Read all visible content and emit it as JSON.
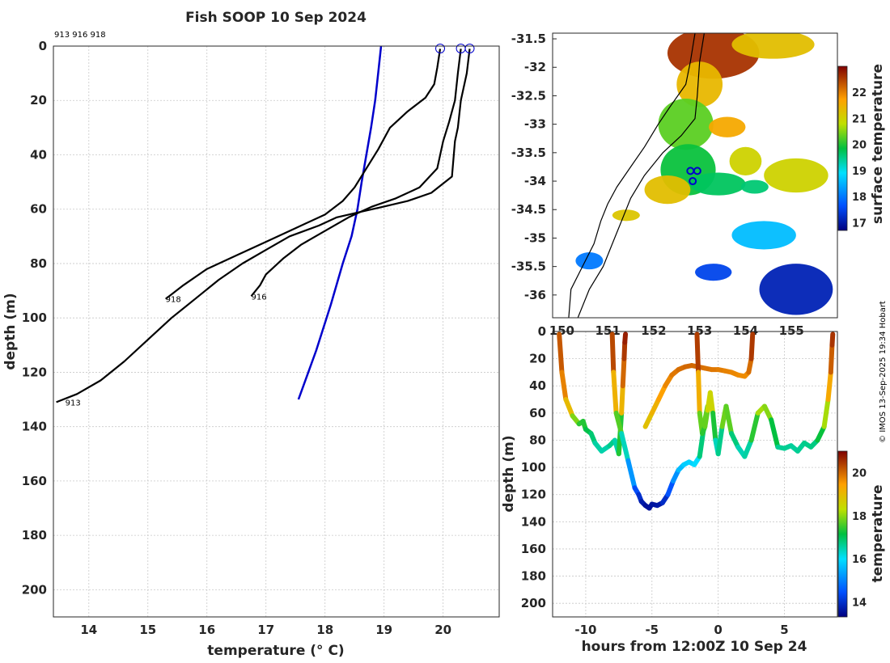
{
  "figure": {
    "title": "Fish SOOP 10 Sep 2024",
    "credit": "© IMOS 13-Sep-2025 19:34 Hobart",
    "top_ids_label": "913 916 918"
  },
  "chart_data": [
    {
      "type": "line",
      "name": "profile",
      "xlabel": "temperature (° C)",
      "ylabel": "depth (m)",
      "xlim": [
        13.4,
        20.95
      ],
      "ylim": [
        0,
        210
      ],
      "y_reversed": true,
      "grid": true,
      "xticks": [
        14,
        15,
        16,
        17,
        18,
        19,
        20
      ],
      "yticks": [
        0,
        20,
        40,
        60,
        80,
        100,
        120,
        140,
        160,
        180,
        200
      ],
      "surface_markers": [
        19.95,
        20.3,
        20.45
      ],
      "profile_labels": [
        {
          "text": "913",
          "x": 13.6,
          "y": 131
        },
        {
          "text": "916",
          "x": 16.75,
          "y": 92
        },
        {
          "text": "918",
          "x": 15.3,
          "y": 93
        }
      ],
      "series": [
        {
          "name": "climatology",
          "color": "#0000cc",
          "x": [
            18.95,
            18.9,
            18.85,
            18.78,
            18.7,
            18.62,
            18.55,
            18.45,
            18.3,
            18.1,
            17.85,
            17.55
          ],
          "y": [
            0,
            10,
            20,
            30,
            40,
            50,
            60,
            70,
            80,
            95,
            112,
            130
          ]
        },
        {
          "name": "913",
          "color": "#000000",
          "x": [
            20.45,
            20.4,
            20.3,
            20.25,
            20.2,
            20.15,
            19.8,
            19.4,
            19.0,
            18.6,
            18.2,
            17.9,
            17.4,
            17.0,
            16.6,
            16.2,
            15.8,
            15.4,
            15.0,
            14.6,
            14.2,
            13.8,
            13.45
          ],
          "y": [
            1,
            10,
            20,
            30,
            35,
            48,
            54,
            57,
            59,
            61,
            63,
            66,
            70,
            75,
            80,
            86,
            93,
            100,
            108,
            116,
            123,
            128,
            131
          ]
        },
        {
          "name": "916",
          "color": "#000000",
          "x": [
            20.3,
            20.25,
            20.2,
            20.1,
            20.0,
            19.9,
            19.6,
            19.2,
            18.8,
            18.4,
            18.0,
            17.6,
            17.3,
            17.0,
            16.9,
            16.75
          ],
          "y": [
            1,
            10,
            20,
            28,
            35,
            45,
            52,
            56,
            59,
            63,
            68,
            73,
            78,
            84,
            88,
            92
          ]
        },
        {
          "name": "918",
          "color": "#000000",
          "x": [
            19.95,
            19.9,
            19.85,
            19.7,
            19.4,
            19.1,
            18.9,
            18.7,
            18.5,
            18.3,
            18.0,
            17.5,
            17.0,
            16.5,
            16.0,
            15.6,
            15.3
          ],
          "y": [
            1,
            8,
            14,
            19,
            24,
            30,
            38,
            45,
            52,
            57,
            62,
            67,
            72,
            77,
            82,
            88,
            93
          ]
        }
      ]
    },
    {
      "type": "heatmap",
      "name": "map",
      "colorbar_label": "surface temperature",
      "colorbar_range": [
        16.7,
        23
      ],
      "colorbar_ticks": [
        17,
        18,
        19,
        20,
        21,
        22
      ],
      "xlim": [
        149.8,
        156
      ],
      "ylim": [
        -36.4,
        -31.4
      ],
      "xticks": [
        "150",
        "151",
        "152",
        "153",
        "154",
        "155"
      ],
      "yticks": [
        "-31.5",
        "-32",
        "-32.5",
        "-33",
        "-33.5",
        "-34",
        "-34.5",
        "-35",
        "-35.5",
        "-36"
      ],
      "ytick_values": [
        -31.5,
        -32,
        -32.5,
        -33,
        -33.5,
        -34,
        -34.5,
        -35,
        -35.5,
        -36
      ],
      "xtick_values": [
        150,
        151,
        152,
        153,
        154,
        155
      ],
      "stations": [
        {
          "lon": 152.8,
          "lat": -33.82
        },
        {
          "lon": 152.95,
          "lat": -33.82
        },
        {
          "lon": 152.85,
          "lat": -34.0
        }
      ],
      "sst_patches": [
        {
          "lon": 153.3,
          "lat": -31.75,
          "temp": 22.6,
          "rlon": 1.0,
          "rlat": 0.45
        },
        {
          "lon": 154.6,
          "lat": -31.6,
          "temp": 21.3,
          "rlon": 0.9,
          "rlat": 0.25
        },
        {
          "lon": 153.0,
          "lat": -32.3,
          "temp": 21.4,
          "rlon": 0.5,
          "rlat": 0.4
        },
        {
          "lon": 152.7,
          "lat": -33.0,
          "temp": 20.3,
          "rlon": 0.6,
          "rlat": 0.45
        },
        {
          "lon": 152.75,
          "lat": -33.8,
          "temp": 19.9,
          "rlon": 0.6,
          "rlat": 0.45
        },
        {
          "lon": 153.4,
          "lat": -34.05,
          "temp": 19.7,
          "rlon": 0.6,
          "rlat": 0.2
        },
        {
          "lon": 152.3,
          "lat": -34.15,
          "temp": 21.3,
          "rlon": 0.5,
          "rlat": 0.25
        },
        {
          "lon": 153.6,
          "lat": -33.05,
          "temp": 21.6,
          "rlon": 0.4,
          "rlat": 0.18
        },
        {
          "lon": 155.1,
          "lat": -33.9,
          "temp": 21.0,
          "rlon": 0.7,
          "rlat": 0.3
        },
        {
          "lon": 154.0,
          "lat": -33.65,
          "temp": 21.0,
          "rlon": 0.35,
          "rlat": 0.25
        },
        {
          "lon": 154.2,
          "lat": -34.1,
          "temp": 19.6,
          "rlon": 0.3,
          "rlat": 0.12
        },
        {
          "lon": 154.4,
          "lat": -34.95,
          "temp": 18.6,
          "rlon": 0.7,
          "rlat": 0.25
        },
        {
          "lon": 155.1,
          "lat": -35.9,
          "temp": 17.1,
          "rlon": 0.8,
          "rlat": 0.45
        },
        {
          "lon": 153.3,
          "lat": -35.6,
          "temp": 17.5,
          "rlon": 0.4,
          "rlat": 0.15
        },
        {
          "lon": 150.6,
          "lat": -35.4,
          "temp": 18.0,
          "rlon": 0.3,
          "rlat": 0.15
        },
        {
          "lon": 151.4,
          "lat": -34.6,
          "temp": 21.2,
          "rlon": 0.3,
          "rlat": 0.1
        }
      ],
      "coast": [
        [
          152.9,
          -31.4
        ],
        [
          152.8,
          -31.9
        ],
        [
          152.7,
          -32.3
        ],
        [
          152.35,
          -32.7
        ],
        [
          152.1,
          -33.0
        ],
        [
          151.8,
          -33.4
        ],
        [
          151.5,
          -33.75
        ],
        [
          151.2,
          -34.1
        ],
        [
          151.0,
          -34.4
        ],
        [
          150.85,
          -34.7
        ],
        [
          150.7,
          -35.1
        ],
        [
          150.45,
          -35.5
        ],
        [
          150.2,
          -35.9
        ],
        [
          150.15,
          -36.4
        ]
      ],
      "shelf": [
        [
          153.1,
          -31.4
        ],
        [
          153.0,
          -31.9
        ],
        [
          152.95,
          -32.5
        ],
        [
          152.9,
          -32.9
        ],
        [
          152.6,
          -33.2
        ],
        [
          152.2,
          -33.5
        ],
        [
          151.8,
          -33.9
        ],
        [
          151.5,
          -34.3
        ],
        [
          151.3,
          -34.7
        ],
        [
          151.1,
          -35.1
        ],
        [
          150.9,
          -35.5
        ],
        [
          150.6,
          -35.9
        ],
        [
          150.35,
          -36.4
        ]
      ]
    },
    {
      "type": "scatter",
      "name": "section",
      "xlabel": "hours from 12:00Z 10 Sep 24",
      "ylabel": "depth (m)",
      "colorbar_label": "temperature",
      "colorbar_range": [
        13.3,
        21
      ],
      "colorbar_ticks": [
        14,
        16,
        18,
        20
      ],
      "xlim": [
        -12.5,
        9
      ],
      "ylim": [
        0,
        210
      ],
      "y_reversed": true,
      "xticks": [
        -10,
        -5,
        0,
        5
      ],
      "yticks": [
        0,
        20,
        40,
        60,
        80,
        100,
        120,
        140,
        160,
        180,
        200
      ],
      "casts": [
        {
          "t": [
            -12.0,
            -11.8,
            -11.5,
            -11.0,
            -10.5,
            -10.2,
            -10.0,
            -9.6,
            -9.3,
            -8.8,
            -8.2,
            -7.8,
            -7.5,
            -7.3,
            -7.2,
            -7.1,
            -7.05,
            -7.0
          ],
          "d": [
            2,
            30,
            50,
            62,
            68,
            66,
            72,
            75,
            82,
            88,
            84,
            80,
            90,
            60,
            40,
            20,
            8,
            2
          ],
          "temp": [
            20.3,
            20.0,
            19.5,
            18.5,
            17.3,
            17.5,
            17.2,
            17.0,
            16.7,
            16.4,
            16.6,
            16.8,
            16.2,
            18.5,
            19.7,
            20.3,
            20.6,
            20.8
          ]
        },
        {
          "t": [
            -8.0,
            -7.9,
            -7.7,
            -7.3,
            -6.8,
            -6.3,
            -6.0,
            -5.8,
            -5.5,
            -5.2,
            -5.0,
            -4.6,
            -4.2,
            -3.8,
            -3.4,
            -3.0,
            -2.6,
            -2.2,
            -1.8,
            -1.4,
            -1.0,
            -0.8
          ],
          "d": [
            2,
            30,
            60,
            75,
            95,
            115,
            120,
            125,
            128,
            130,
            127,
            128,
            126,
            120,
            110,
            102,
            98,
            96,
            98,
            92,
            65,
            55
          ],
          "temp": [
            20.6,
            20.0,
            18.3,
            17.0,
            15.8,
            14.6,
            14.2,
            13.8,
            13.6,
            13.5,
            13.6,
            13.6,
            13.7,
            14.2,
            14.8,
            15.5,
            15.7,
            15.9,
            15.8,
            16.1,
            17.5,
            18.0
          ]
        },
        {
          "t": [
            -5.5,
            -5.0,
            -4.5,
            -4.0,
            -3.5,
            -3.0,
            -2.5,
            -2.0,
            -1.5,
            -1.0,
            -0.5,
            0.0,
            0.5,
            1.0,
            1.5,
            2.0,
            2.3,
            2.5,
            2.6
          ],
          "d": [
            70,
            60,
            50,
            40,
            32,
            28,
            26,
            25,
            26,
            27,
            28,
            28,
            29,
            30,
            32,
            33,
            30,
            20,
            2
          ],
          "temp": [
            18.8,
            19.0,
            19.3,
            19.6,
            19.8,
            19.9,
            20.0,
            20.0,
            20.0,
            19.9,
            19.9,
            19.8,
            19.8,
            19.7,
            19.7,
            19.6,
            19.7,
            20.2,
            20.7
          ]
        },
        {
          "t": [
            -1.6,
            -1.5,
            -1.4,
            -1.2,
            -1.0,
            -0.8,
            -0.6,
            -0.4,
            -0.2,
            0.0,
            0.3,
            0.6,
            1.0,
            1.5,
            2.0,
            2.5,
            3.0,
            3.5,
            4.0,
            4.5
          ],
          "d": [
            2,
            30,
            60,
            75,
            70,
            58,
            45,
            60,
            80,
            90,
            70,
            55,
            75,
            85,
            92,
            80,
            60,
            55,
            65,
            85
          ],
          "temp": [
            20.6,
            20.2,
            18.2,
            17.3,
            17.5,
            18.0,
            19.0,
            18.0,
            16.6,
            16.2,
            17.2,
            18.4,
            17.0,
            16.6,
            16.3,
            16.8,
            18.0,
            18.3,
            17.6,
            16.7
          ]
        },
        {
          "t": [
            4.5,
            5.0,
            5.5,
            6.0,
            6.5,
            7.0,
            7.5,
            8.0,
            8.3,
            8.5,
            8.6,
            8.65
          ],
          "d": [
            85,
            86,
            84,
            88,
            82,
            85,
            80,
            70,
            50,
            30,
            10,
            2
          ],
          "temp": [
            16.7,
            16.6,
            16.7,
            16.5,
            16.8,
            16.6,
            16.9,
            17.5,
            18.8,
            19.8,
            20.4,
            20.6
          ]
        }
      ]
    }
  ]
}
